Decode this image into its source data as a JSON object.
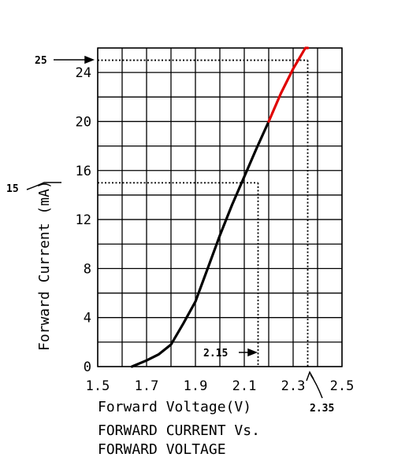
{
  "chart_data": {
    "type": "line",
    "xlabel": "Forward Voltage(V)",
    "ylabel": "Forward Current (mA)",
    "title_lines": [
      "FORWARD CURRENT Vs.",
      "FORWARD VOLTAGE"
    ],
    "xlim": [
      1.5,
      2.5
    ],
    "ylim": [
      0,
      26
    ],
    "x_ticks": [
      "1.5",
      "1.7",
      "1.9",
      "2.1",
      "2.3",
      "2.5"
    ],
    "y_ticks": [
      "0",
      "4",
      "8",
      "12",
      "16",
      "20",
      "24"
    ],
    "grid": true,
    "colors": {
      "curve": "#000000",
      "extension": "#e00000"
    },
    "series": [
      {
        "x": [
          1.64,
          1.7,
          1.75,
          1.8,
          1.85,
          1.9,
          1.95,
          2.0,
          2.05,
          2.1,
          2.15,
          2.2
        ],
        "y": [
          0.0,
          0.5,
          1.0,
          1.8,
          3.5,
          5.3,
          8.0,
          10.7,
          13.2,
          15.5,
          17.8,
          20.0
        ],
        "color": "#000000"
      },
      {
        "x": [
          2.2,
          2.25,
          2.3,
          2.35,
          2.36
        ],
        "y": [
          20.0,
          22.3,
          24.3,
          26.0,
          26.0
        ],
        "color": "#e00000"
      }
    ],
    "annotations": [
      {
        "label": "25",
        "y": 25,
        "x": 2.35
      },
      {
        "label": "15",
        "y": 15,
        "x": 2.15
      },
      {
        "label": "2.15",
        "x": 2.15,
        "y": 1
      },
      {
        "label": "2.35",
        "x": 2.35,
        "y": 0
      }
    ]
  }
}
